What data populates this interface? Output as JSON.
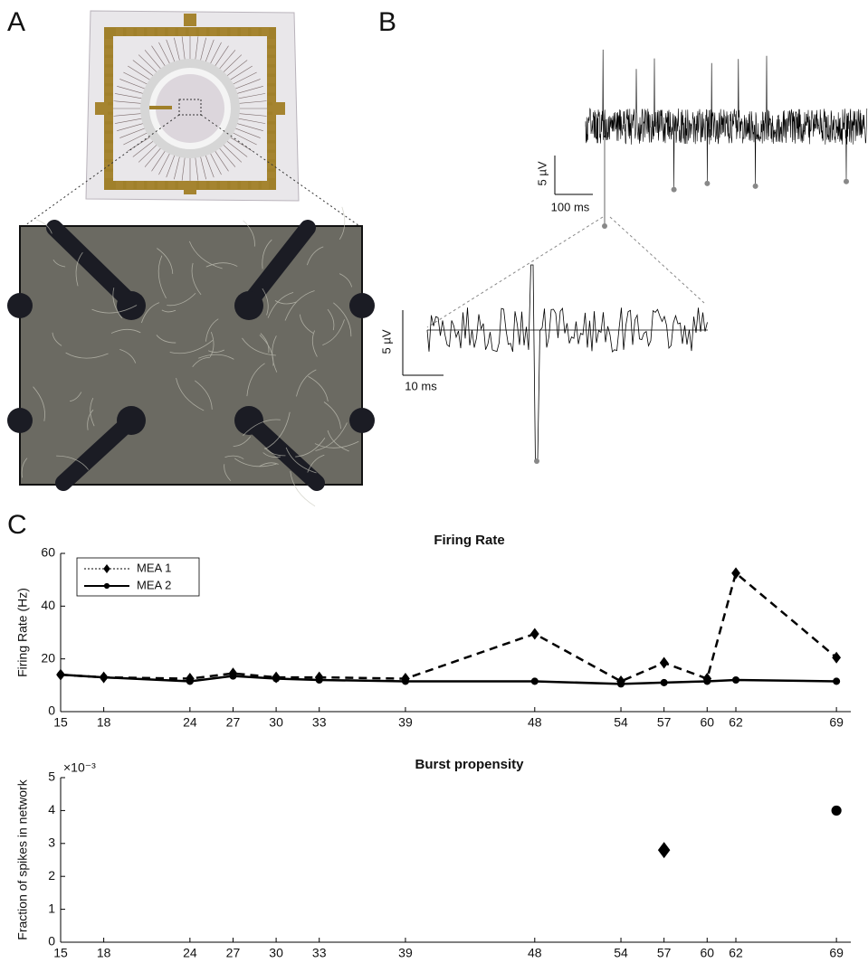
{
  "panels": {
    "a": "A",
    "b": "B",
    "c": "C"
  },
  "scale_bars": {
    "top_voltage": "5 µV",
    "top_time": "100 ms",
    "bottom_voltage": "5 µV",
    "bottom_time": "10 ms"
  },
  "chart_data": [
    {
      "type": "line",
      "title": "Firing Rate",
      "ylabel": "Firing Rate (Hz)",
      "x": [
        15,
        18,
        24,
        27,
        30,
        33,
        39,
        48,
        54,
        57,
        60,
        62,
        69
      ],
      "xlim": [
        15,
        70
      ],
      "xticks": [
        15,
        18,
        24,
        27,
        30,
        33,
        39,
        48,
        54,
        57,
        60,
        62,
        69
      ],
      "ylim": [
        0,
        60
      ],
      "yticks": [
        0,
        20,
        40,
        60
      ],
      "legend": "upper left",
      "series": [
        {
          "name": "MEA 1",
          "color": "#000000",
          "dashed": true,
          "marker": "diamond",
          "values": [
            14,
            13,
            12.5,
            14.5,
            13,
            13,
            12.5,
            29.5,
            11.5,
            18.5,
            12.5,
            52.5,
            20.5
          ]
        },
        {
          "name": "MEA 2",
          "color": "#000000",
          "dashed": false,
          "marker": "circle",
          "values": [
            14,
            13,
            11.5,
            13.5,
            12.5,
            12,
            11.5,
            11.5,
            10.5,
            11,
            11.5,
            12,
            11.5
          ]
        }
      ]
    },
    {
      "type": "scatter",
      "title": "Burst propensity",
      "ylabel": "Fraction of spikes in network",
      "y_multiplier": "×10⁻³",
      "x": [
        15,
        18,
        24,
        27,
        30,
        33,
        39,
        48,
        54,
        57,
        60,
        62,
        69
      ],
      "xlim": [
        15,
        70
      ],
      "xticks": [
        15,
        18,
        24,
        27,
        30,
        33,
        39,
        48,
        54,
        57,
        60,
        62,
        69
      ],
      "ylim": [
        0,
        5
      ],
      "yticks": [
        0,
        1,
        2,
        3,
        4,
        5
      ],
      "series": [
        {
          "name": "MEA 1",
          "color": "#000000",
          "marker": "diamond",
          "values": [
            null,
            null,
            null,
            null,
            null,
            null,
            null,
            null,
            null,
            2.8,
            null,
            null,
            null
          ]
        },
        {
          "name": "MEA 2",
          "color": "#000000",
          "marker": "circle",
          "values": [
            null,
            null,
            null,
            null,
            null,
            null,
            null,
            null,
            null,
            null,
            null,
            null,
            4
          ]
        }
      ]
    }
  ]
}
